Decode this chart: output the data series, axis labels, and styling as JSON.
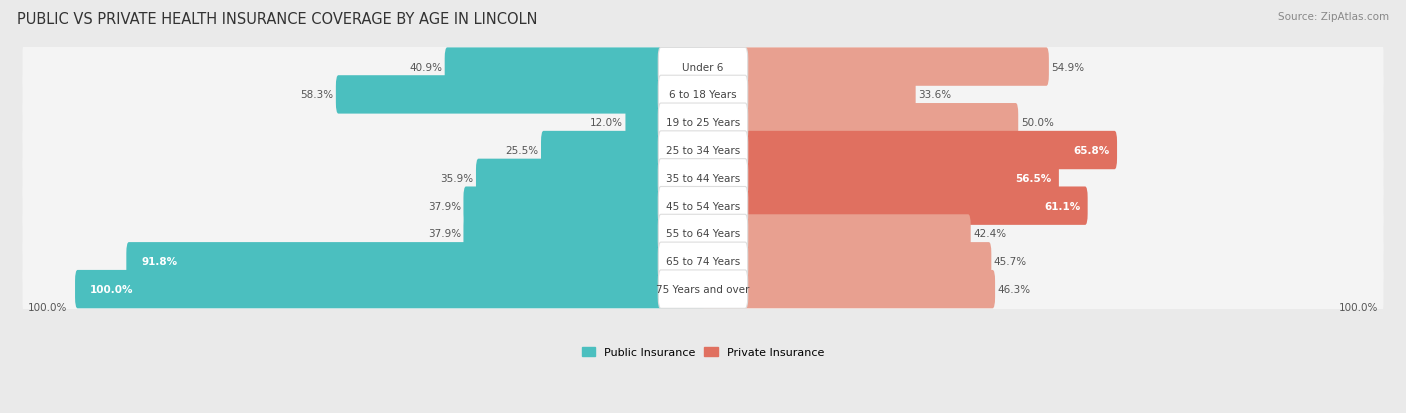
{
  "title": "PUBLIC VS PRIVATE HEALTH INSURANCE COVERAGE BY AGE IN LINCOLN",
  "source": "Source: ZipAtlas.com",
  "categories": [
    "Under 6",
    "6 to 18 Years",
    "19 to 25 Years",
    "25 to 34 Years",
    "35 to 44 Years",
    "45 to 54 Years",
    "55 to 64 Years",
    "65 to 74 Years",
    "75 Years and over"
  ],
  "public_values": [
    40.9,
    58.3,
    12.0,
    25.5,
    35.9,
    37.9,
    37.9,
    91.8,
    100.0
  ],
  "private_values": [
    54.9,
    33.6,
    50.0,
    65.8,
    56.5,
    61.1,
    42.4,
    45.7,
    46.3
  ],
  "public_color": "#4bbfbf",
  "private_color_strong": "#e07060",
  "private_color_weak": "#e8a090",
  "background_color": "#eaeaea",
  "row_bg_color": "#f4f4f4",
  "label_bg_color": "#ffffff",
  "title_fontsize": 10.5,
  "label_fontsize": 7.5,
  "value_fontsize": 7.5,
  "legend_fontsize": 8,
  "source_fontsize": 7.5,
  "strong_private_threshold": 55,
  "strong_public_threshold": 80
}
